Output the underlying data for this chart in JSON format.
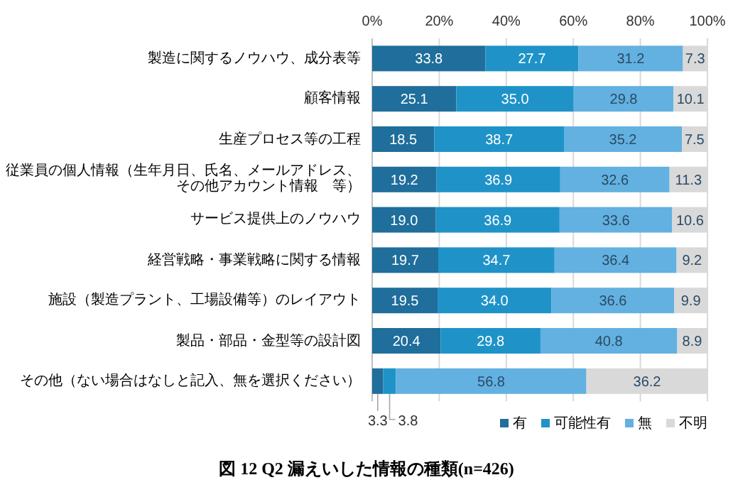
{
  "chart_data": {
    "type": "bar",
    "orientation": "horizontal",
    "stacked": true,
    "grid": "x",
    "legend": "bottom right",
    "categories": [
      "製造に関するノウハウ、成分表等",
      "顧客情報",
      "生産プロセス等の工程",
      "従業員の個人情報（生年月日、氏名、メールアドレス、その他アカウント情報　等）",
      "サービス提供上のノウハウ",
      "経営戦略・事業戦略に関する情報",
      "施設（製造プラント、工場設備等）のレイアウト",
      "製品・部品・金型等の設計図",
      "その他（ない場合はなしと記入、無を選択ください）"
    ],
    "series": [
      {
        "name": "有",
        "color": "#1f6e9c",
        "values": [
          33.8,
          25.1,
          18.5,
          19.2,
          19.0,
          19.7,
          19.5,
          20.4,
          3.3
        ],
        "value_labels": [
          "33.8",
          "25.1",
          "18.5",
          "19.2",
          "19.0",
          "19.7",
          "19.5",
          "20.4",
          "3.3"
        ]
      },
      {
        "name": "可能性有",
        "color": "#1f93c8",
        "values": [
          27.7,
          35.0,
          38.7,
          36.9,
          36.9,
          34.7,
          34.0,
          29.8,
          3.8
        ],
        "value_labels": [
          "27.7",
          "35.0",
          "38.7",
          "36.9",
          "36.9",
          "34.7",
          "34.0",
          "29.8",
          "3.8"
        ]
      },
      {
        "name": "無",
        "color": "#62b1e0",
        "values": [
          31.2,
          29.8,
          35.2,
          32.6,
          33.6,
          36.4,
          36.6,
          40.8,
          56.8
        ],
        "value_labels": [
          "31.2",
          "29.8",
          "35.2",
          "32.6",
          "33.6",
          "36.4",
          "36.6",
          "40.8",
          "56.8"
        ]
      },
      {
        "name": "不明",
        "color": "#d9d9d9",
        "values": [
          7.3,
          10.1,
          7.5,
          11.3,
          10.6,
          9.2,
          9.9,
          8.9,
          36.2
        ],
        "value_labels": [
          "7.3",
          "10.1",
          "7.5",
          "11.3",
          "10.6",
          "9.2",
          "9.9",
          "8.9",
          "36.2"
        ]
      }
    ],
    "xlim": [
      0,
      100
    ],
    "xticks": [
      {
        "value": 0,
        "label": "0%"
      },
      {
        "value": 20,
        "label": "20%"
      },
      {
        "value": 40,
        "label": "40%"
      },
      {
        "value": 60,
        "label": "60%"
      },
      {
        "value": 80,
        "label": "80%"
      },
      {
        "value": 100,
        "label": "100%"
      }
    ],
    "annotations": [
      "図 12 Q2 漏えいした情報の種類(n=426)"
    ]
  }
}
